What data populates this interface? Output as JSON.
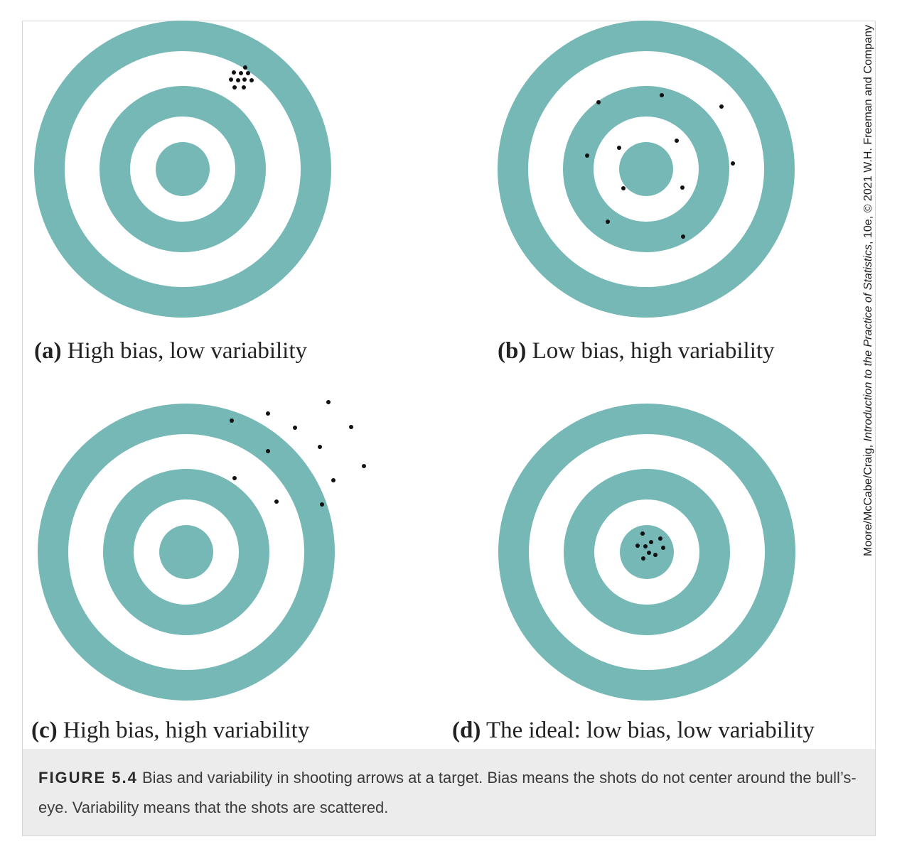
{
  "colors": {
    "ring": "#76b8b6",
    "gap": "#ffffff",
    "shot": "#111111",
    "caption_bg": "#ececec"
  },
  "panels": [
    {
      "id": "a",
      "letter": "(a)",
      "label": "High bias, low variability"
    },
    {
      "id": "b",
      "letter": "(b)",
      "label": "Low bias, high variability"
    },
    {
      "id": "c",
      "letter": "(c)",
      "label": "High bias, high variability"
    },
    {
      "id": "d",
      "letter": "(d)",
      "label": "The ideal: low bias, low variability"
    }
  ],
  "credit": {
    "prefix": "Moore/McCabe/Craig, ",
    "title": "Introduction to the Practice of Statistics",
    "suffix": ", 10e, © 2021 W.H. Freeman and Company"
  },
  "caption": {
    "figure_number": "FIGURE 5.4",
    "text": "Bias and variability in shooting arrows at a target. Bias means the shots do not center around the bull’s-eye. Variability means that the shots are scattered."
  }
}
